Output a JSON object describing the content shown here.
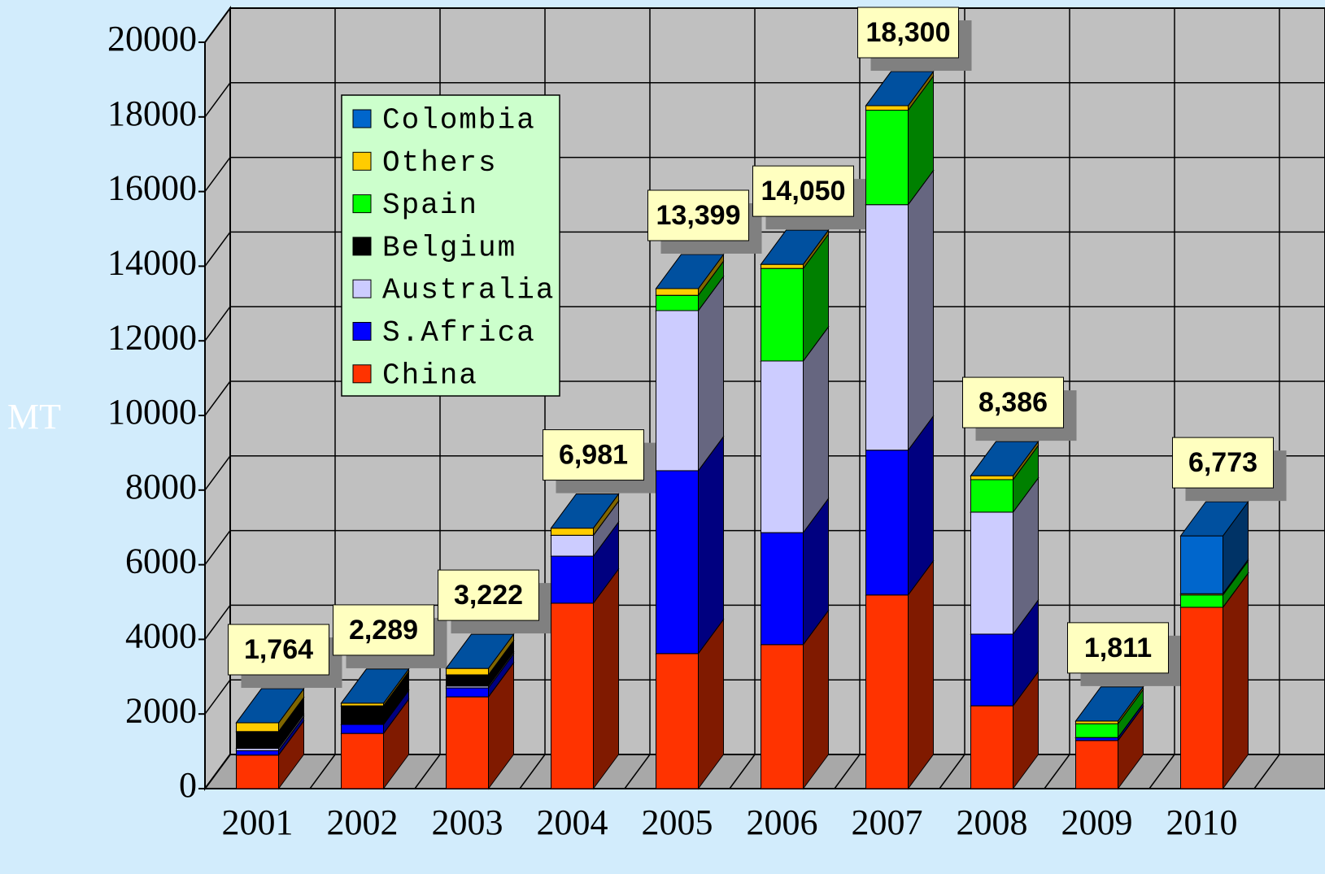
{
  "chart_data": {
    "type": "bar3d_stacked",
    "y_label": "MT",
    "categories": [
      "2001",
      "2002",
      "2003",
      "2004",
      "2005",
      "2006",
      "2007",
      "2008",
      "2009",
      "2010"
    ],
    "series": [
      {
        "name": "China",
        "color": "#ff3300",
        "values": [
          900,
          1480,
          2460,
          4970,
          3620,
          3860,
          5190,
          2220,
          1290,
          4860
        ]
      },
      {
        "name": "S.Africa",
        "color": "#0000ff",
        "values": [
          120,
          240,
          240,
          1260,
          4900,
          3000,
          3880,
          1920,
          80,
          0
        ]
      },
      {
        "name": "Australia",
        "color": "#ccccff",
        "values": [
          60,
          0,
          50,
          560,
          4290,
          4600,
          6580,
          3270,
          0,
          0
        ]
      },
      {
        "name": "Belgium",
        "color": "#000000",
        "values": [
          450,
          500,
          300,
          0,
          0,
          0,
          0,
          0,
          0,
          0
        ]
      },
      {
        "name": "Spain",
        "color": "#00ff00",
        "values": [
          0,
          0,
          0,
          0,
          410,
          2480,
          2530,
          870,
          370,
          330
        ]
      },
      {
        "name": "Others",
        "color": "#ffcc00",
        "values": [
          234,
          69,
          172,
          191,
          179,
          110,
          120,
          106,
          71,
          33
        ]
      },
      {
        "name": "Colombia",
        "color": "#0066cc",
        "values": [
          0,
          0,
          0,
          0,
          0,
          0,
          0,
          0,
          0,
          1550
        ]
      }
    ],
    "totals": [
      1764,
      2289,
      3222,
      6981,
      13399,
      14050,
      18300,
      8386,
      1811,
      6773
    ],
    "total_labels": [
      "1,764",
      "2,289",
      "3,222",
      "6,981",
      "13,399",
      "14,050",
      "18,300",
      "8,386",
      "1,811",
      "6,773"
    ],
    "ylim": [
      0,
      20000
    ],
    "yticks": [
      0,
      2000,
      4000,
      6000,
      8000,
      10000,
      12000,
      14000,
      16000,
      18000,
      20000
    ],
    "grid": true,
    "legend": "top-left"
  }
}
